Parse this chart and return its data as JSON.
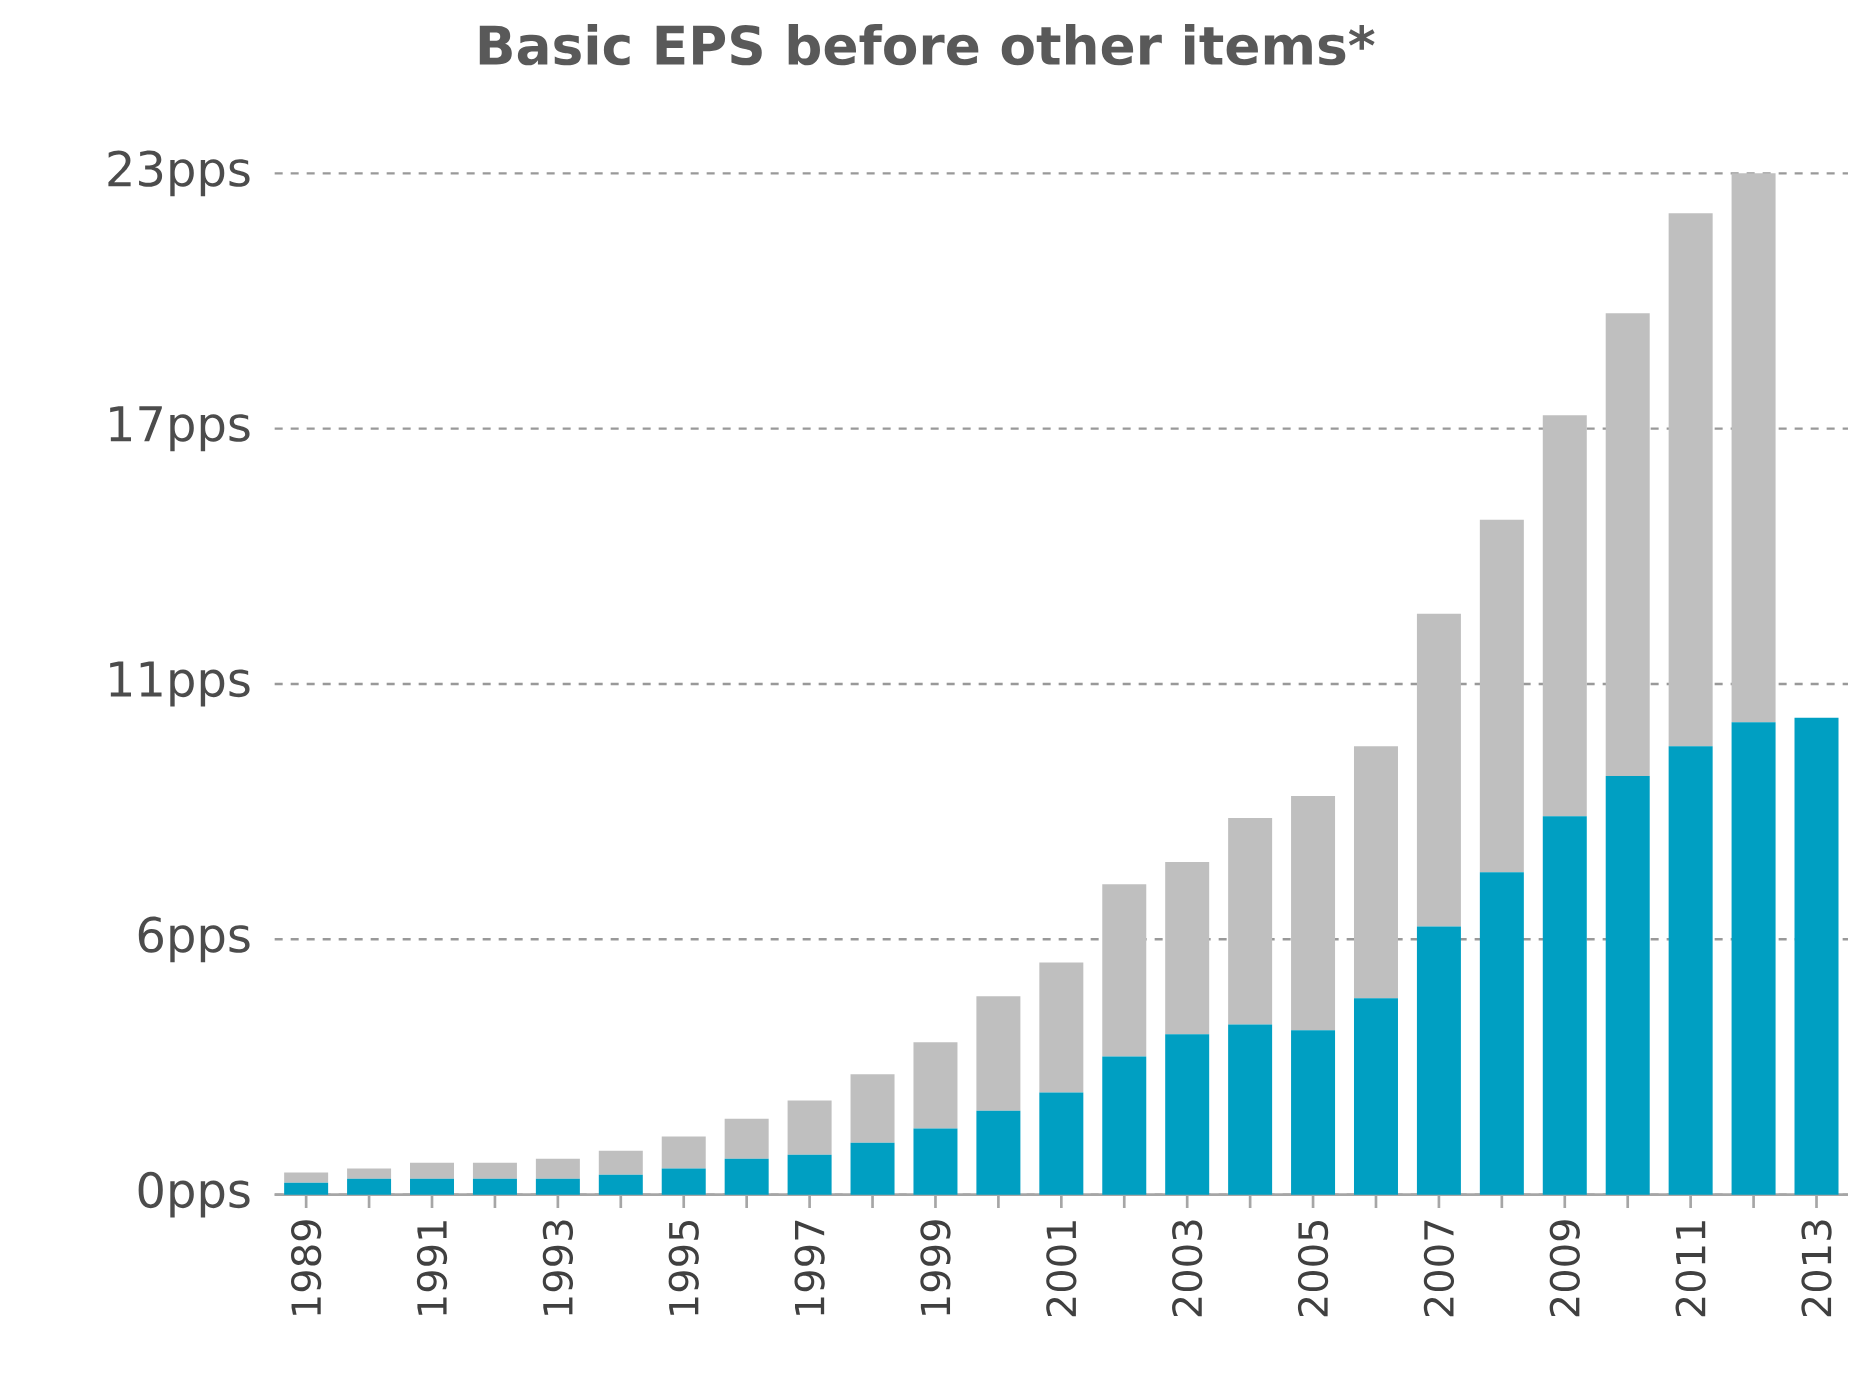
{
  "chart_data": {
    "type": "bar",
    "stacked": true,
    "title": "Basic EPS before other items*",
    "categories": [
      "1989",
      null,
      "1991",
      null,
      "1993",
      null,
      "1995",
      null,
      "1997",
      null,
      "1999",
      null,
      "2001",
      null,
      "2003",
      null,
      "2005",
      null,
      "2007",
      null,
      "2009",
      null,
      "2011",
      null,
      "2013"
    ],
    "series": [
      {
        "color": "#009fc2",
        "values": [
          0.27,
          0.36,
          0.36,
          0.36,
          0.36,
          0.45,
          0.59,
          0.81,
          0.9,
          1.17,
          1.49,
          1.89,
          2.3,
          3.11,
          3.61,
          3.83,
          3.7,
          4.42,
          6.04,
          7.26,
          8.52,
          9.43,
          10.1,
          10.64,
          10.74
        ]
      },
      {
        "color": "#bfbfbf",
        "values": [
          0.23,
          0.23,
          0.36,
          0.36,
          0.45,
          0.54,
          0.72,
          0.9,
          1.22,
          1.54,
          1.94,
          2.58,
          2.93,
          3.88,
          3.88,
          4.65,
          5.28,
          5.68,
          7.04,
          7.94,
          9.03,
          10.42,
          12.0,
          12.36,
          null
        ]
      }
    ],
    "ylim": [
      0,
      23
    ],
    "yticks": [
      {
        "value": 0,
        "label": "0pps"
      },
      {
        "value": 5.75,
        "label": "6pps"
      },
      {
        "value": 11.5,
        "label": "11pps"
      },
      {
        "value": 17.25,
        "label": "17pps"
      },
      {
        "value": 23,
        "label": "23pps"
      }
    ],
    "grid": "y"
  }
}
